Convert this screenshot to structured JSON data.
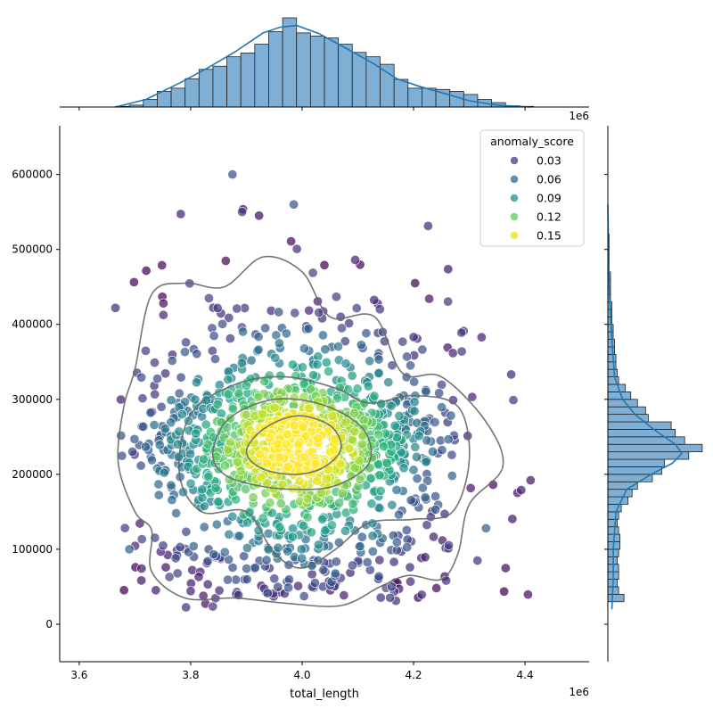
{
  "chart_data": {
    "type": "scatter",
    "title": "",
    "xlabel": "total_length",
    "ylabel": "",
    "x_offset_label": "1e6",
    "xlim": [
      3.565,
      4.515
    ],
    "ylim": [
      -50000,
      665000
    ],
    "x_ticks": [
      3.6,
      3.8,
      4.0,
      4.2,
      4.4
    ],
    "x_tick_labels": [
      "3.6",
      "3.8",
      "4.0",
      "4.2",
      "4.4"
    ],
    "y_ticks": [
      0,
      100000,
      200000,
      300000,
      400000,
      500000,
      600000
    ],
    "y_tick_labels": [
      "0",
      "100000",
      "200000",
      "300000",
      "400000",
      "500000",
      "600000"
    ],
    "grid": false,
    "legend": {
      "title": "anomaly_score",
      "placement": "top-right",
      "entries": [
        {
          "label": "0.03",
          "color": "#443983"
        },
        {
          "label": "0.06",
          "color": "#31688e"
        },
        {
          "label": "0.09",
          "color": "#21918c"
        },
        {
          "label": "0.12",
          "color": "#5ec962"
        },
        {
          "label": "0.15",
          "color": "#e3e418"
        }
      ]
    },
    "colors": {
      "hist_fill": "#7fafd4",
      "hist_edge": "#222222",
      "kde_line": "#1f77b4",
      "contour": "#666666"
    },
    "series": [
      {
        "name": "anomaly_score",
        "approx_point_count": 1500,
        "center": {
          "x": 3.99,
          "y": 235000
        },
        "x_range": [
          3.67,
          4.41
        ],
        "y_range": [
          20000,
          600000
        ],
        "color_scale": "viridis",
        "hue_range": [
          0.0,
          0.16
        ]
      }
    ],
    "sample_points": [
      {
        "x": 3.665,
        "y": 422000,
        "score": 0.02
      },
      {
        "x": 3.875,
        "y": 600000,
        "score": 0.04
      },
      {
        "x": 3.985,
        "y": 560000,
        "score": 0.04
      },
      {
        "x": 4.41,
        "y": 192000,
        "score": 0.01
      },
      {
        "x": 3.69,
        "y": 100000,
        "score": 0.05
      },
      {
        "x": 4.33,
        "y": 128000,
        "score": 0.05
      },
      {
        "x": 3.99,
        "y": 250000,
        "score": 0.15
      }
    ],
    "top_histogram": {
      "bin_edges": [
        3.665,
        3.69,
        3.715,
        3.74,
        3.765,
        3.79,
        3.815,
        3.84,
        3.865,
        3.89,
        3.915,
        3.94,
        3.965,
        3.99,
        4.015,
        4.04,
        4.065,
        4.09,
        4.115,
        4.14,
        4.165,
        4.19,
        4.215,
        4.24,
        4.265,
        4.29,
        4.315,
        4.34,
        4.365,
        4.39,
        4.415
      ],
      "counts": [
        1,
        3,
        12,
        25,
        30,
        45,
        60,
        65,
        80,
        86,
        100,
        120,
        142,
        118,
        113,
        110,
        100,
        87,
        80,
        68,
        44,
        30,
        30,
        28,
        25,
        20,
        12,
        7,
        2,
        1
      ],
      "kde": [
        [
          3.665,
          0
        ],
        [
          3.72,
          12
        ],
        [
          3.78,
          38
        ],
        [
          3.83,
          62
        ],
        [
          3.88,
          88
        ],
        [
          3.93,
          118
        ],
        [
          3.96,
          127
        ],
        [
          3.99,
          130
        ],
        [
          4.03,
          117
        ],
        [
          4.08,
          93
        ],
        [
          4.13,
          68
        ],
        [
          4.17,
          45
        ],
        [
          4.21,
          33
        ],
        [
          4.25,
          23
        ],
        [
          4.3,
          10
        ],
        [
          4.35,
          3
        ],
        [
          4.41,
          0
        ]
      ]
    },
    "right_histogram": {
      "bin_edges": [
        30000,
        40000,
        50000,
        60000,
        70000,
        80000,
        90000,
        100000,
        110000,
        120000,
        130000,
        140000,
        150000,
        160000,
        170000,
        180000,
        190000,
        200000,
        210000,
        220000,
        230000,
        240000,
        250000,
        260000,
        270000,
        280000,
        290000,
        300000,
        310000,
        320000,
        330000,
        340000,
        350000,
        360000,
        370000,
        380000,
        390000,
        400000,
        410000,
        420000,
        430000,
        440000,
        450000,
        460000,
        470000,
        480000,
        490000,
        500000,
        510000,
        520000
      ],
      "counts": [
        12,
        8,
        7,
        8,
        8,
        7,
        8,
        9,
        9,
        8,
        7,
        8,
        10,
        15,
        18,
        22,
        33,
        40,
        42,
        60,
        70,
        57,
        50,
        47,
        30,
        28,
        22,
        17,
        13,
        8,
        7,
        6,
        6,
        5,
        5,
        4,
        4,
        3,
        3,
        3,
        2,
        2,
        2,
        2,
        1,
        1,
        1,
        1,
        1
      ],
      "kde": [
        [
          20000,
          3
        ],
        [
          60000,
          4
        ],
        [
          100000,
          4
        ],
        [
          150000,
          6
        ],
        [
          180000,
          14
        ],
        [
          200000,
          32
        ],
        [
          215000,
          48
        ],
        [
          228000,
          55
        ],
        [
          240000,
          50
        ],
        [
          260000,
          34
        ],
        [
          280000,
          20
        ],
        [
          300000,
          11
        ],
        [
          330000,
          5
        ],
        [
          380000,
          3
        ],
        [
          450000,
          1
        ],
        [
          560000,
          0
        ]
      ]
    },
    "contours": [
      [
        [
          3.68,
          290000
        ],
        [
          3.7,
          340000
        ],
        [
          3.73,
          440000
        ],
        [
          3.79,
          455000
        ],
        [
          3.86,
          450000
        ],
        [
          3.93,
          490000
        ],
        [
          4.0,
          470000
        ],
        [
          4.05,
          410000
        ],
        [
          4.13,
          410000
        ],
        [
          4.18,
          335000
        ],
        [
          4.25,
          330000
        ],
        [
          4.33,
          270000
        ],
        [
          4.36,
          210000
        ],
        [
          4.3,
          160000
        ],
        [
          4.28,
          95000
        ],
        [
          4.25,
          60000
        ],
        [
          4.19,
          65000
        ],
        [
          4.14,
          50000
        ],
        [
          4.07,
          25000
        ],
        [
          3.97,
          28000
        ],
        [
          3.88,
          35000
        ],
        [
          3.79,
          35000
        ],
        [
          3.73,
          70000
        ],
        [
          3.73,
          125000
        ],
        [
          3.7,
          150000
        ],
        [
          3.67,
          215000
        ],
        [
          3.68,
          290000
        ]
      ],
      [
        [
          3.78,
          200000
        ],
        [
          3.8,
          280000
        ],
        [
          3.88,
          320000
        ],
        [
          3.97,
          330000
        ],
        [
          4.06,
          315000
        ],
        [
          4.12,
          295000
        ],
        [
          4.2,
          305000
        ],
        [
          4.28,
          290000
        ],
        [
          4.3,
          220000
        ],
        [
          4.27,
          150000
        ],
        [
          4.2,
          140000
        ],
        [
          4.12,
          135000
        ],
        [
          4.06,
          100000
        ],
        [
          4.0,
          75000
        ],
        [
          3.95,
          95000
        ],
        [
          3.9,
          150000
        ],
        [
          3.82,
          150000
        ],
        [
          3.78,
          200000
        ]
      ],
      [
        [
          3.84,
          230000
        ],
        [
          3.87,
          275000
        ],
        [
          3.95,
          300000
        ],
        [
          4.04,
          292000
        ],
        [
          4.11,
          260000
        ],
        [
          4.12,
          215000
        ],
        [
          4.06,
          185000
        ],
        [
          3.99,
          180000
        ],
        [
          3.92,
          185000
        ],
        [
          3.86,
          200000
        ],
        [
          3.84,
          230000
        ]
      ],
      [
        [
          3.9,
          230000
        ],
        [
          3.93,
          260000
        ],
        [
          3.99,
          278000
        ],
        [
          4.05,
          265000
        ],
        [
          4.07,
          235000
        ],
        [
          4.04,
          210000
        ],
        [
          3.99,
          200000
        ],
        [
          3.93,
          207000
        ],
        [
          3.9,
          230000
        ]
      ]
    ]
  }
}
